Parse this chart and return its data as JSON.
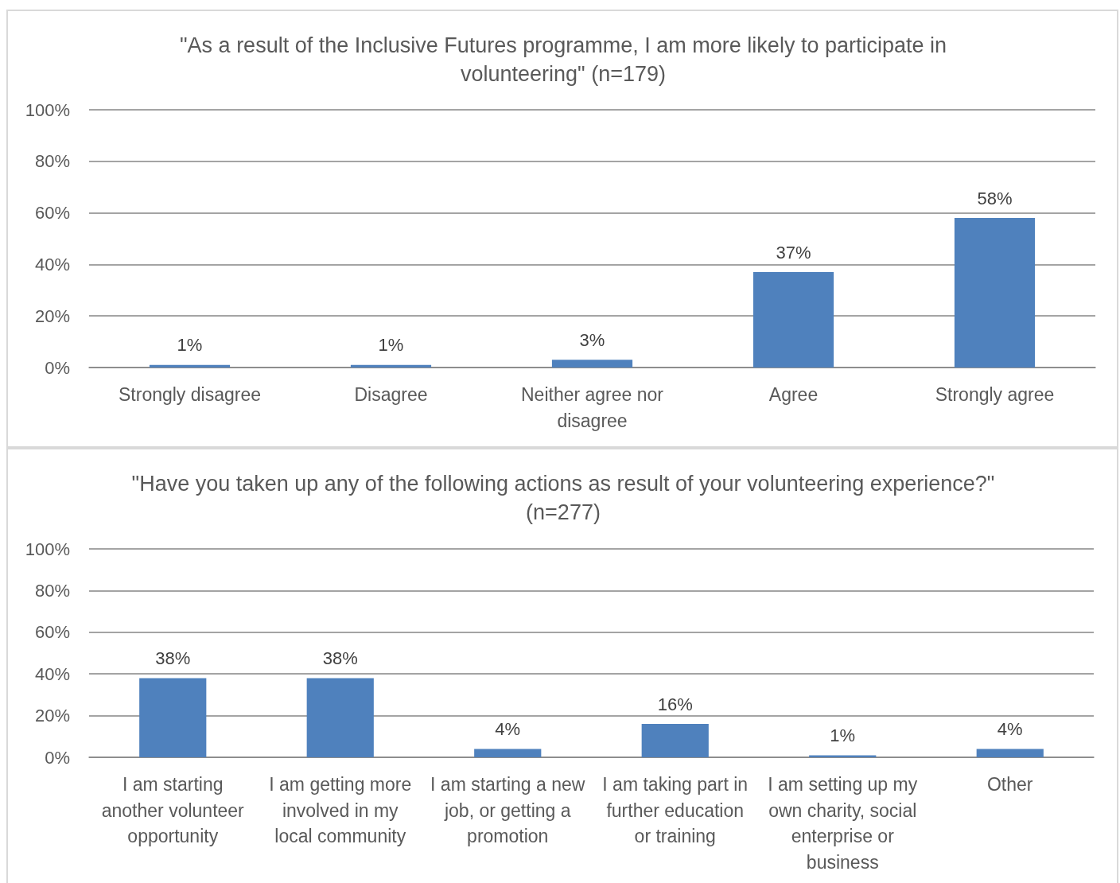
{
  "chart_data": [
    {
      "type": "bar",
      "title": "\"As a result of the Inclusive Futures programme, I am more likely to participate in volunteering\" (n=179)",
      "categories": [
        "Strongly disagree",
        "Disagree",
        "Neither agree nor disagree",
        "Agree",
        "Strongly agree"
      ],
      "values": [
        1,
        1,
        3,
        37,
        58
      ],
      "value_labels": [
        "1%",
        "1%",
        "3%",
        "37%",
        "58%"
      ],
      "color": "#4f81bd",
      "ylim": [
        0,
        100
      ],
      "yticks": [
        {
          "value": 0,
          "label": "0%"
        },
        {
          "value": 20,
          "label": "20%"
        },
        {
          "value": 40,
          "label": "40%"
        },
        {
          "value": 60,
          "label": "60%"
        },
        {
          "value": 80,
          "label": "80%"
        },
        {
          "value": 100,
          "label": "100%"
        }
      ],
      "grid": "y"
    },
    {
      "type": "bar",
      "title": "\"Have you taken up any of the following actions as result of your volunteering experience?\" (n=277)",
      "categories": [
        "I am starting another volunteer opportunity",
        "I am getting more involved in my local community",
        "I am starting a new job, or getting a promotion",
        "I am taking part in further education or training",
        "I am setting up my own charity, social enterprise or business",
        "Other"
      ],
      "values": [
        38,
        38,
        4,
        16,
        1,
        4
      ],
      "value_labels": [
        "38%",
        "38%",
        "4%",
        "16%",
        "1%",
        "4%"
      ],
      "color": "#4f81bd",
      "ylim": [
        0,
        100
      ],
      "yticks": [
        {
          "value": 0,
          "label": "0%"
        },
        {
          "value": 20,
          "label": "20%"
        },
        {
          "value": 40,
          "label": "40%"
        },
        {
          "value": 60,
          "label": "60%"
        },
        {
          "value": 80,
          "label": "80%"
        },
        {
          "value": 100,
          "label": "100%"
        }
      ],
      "grid": "y"
    }
  ]
}
